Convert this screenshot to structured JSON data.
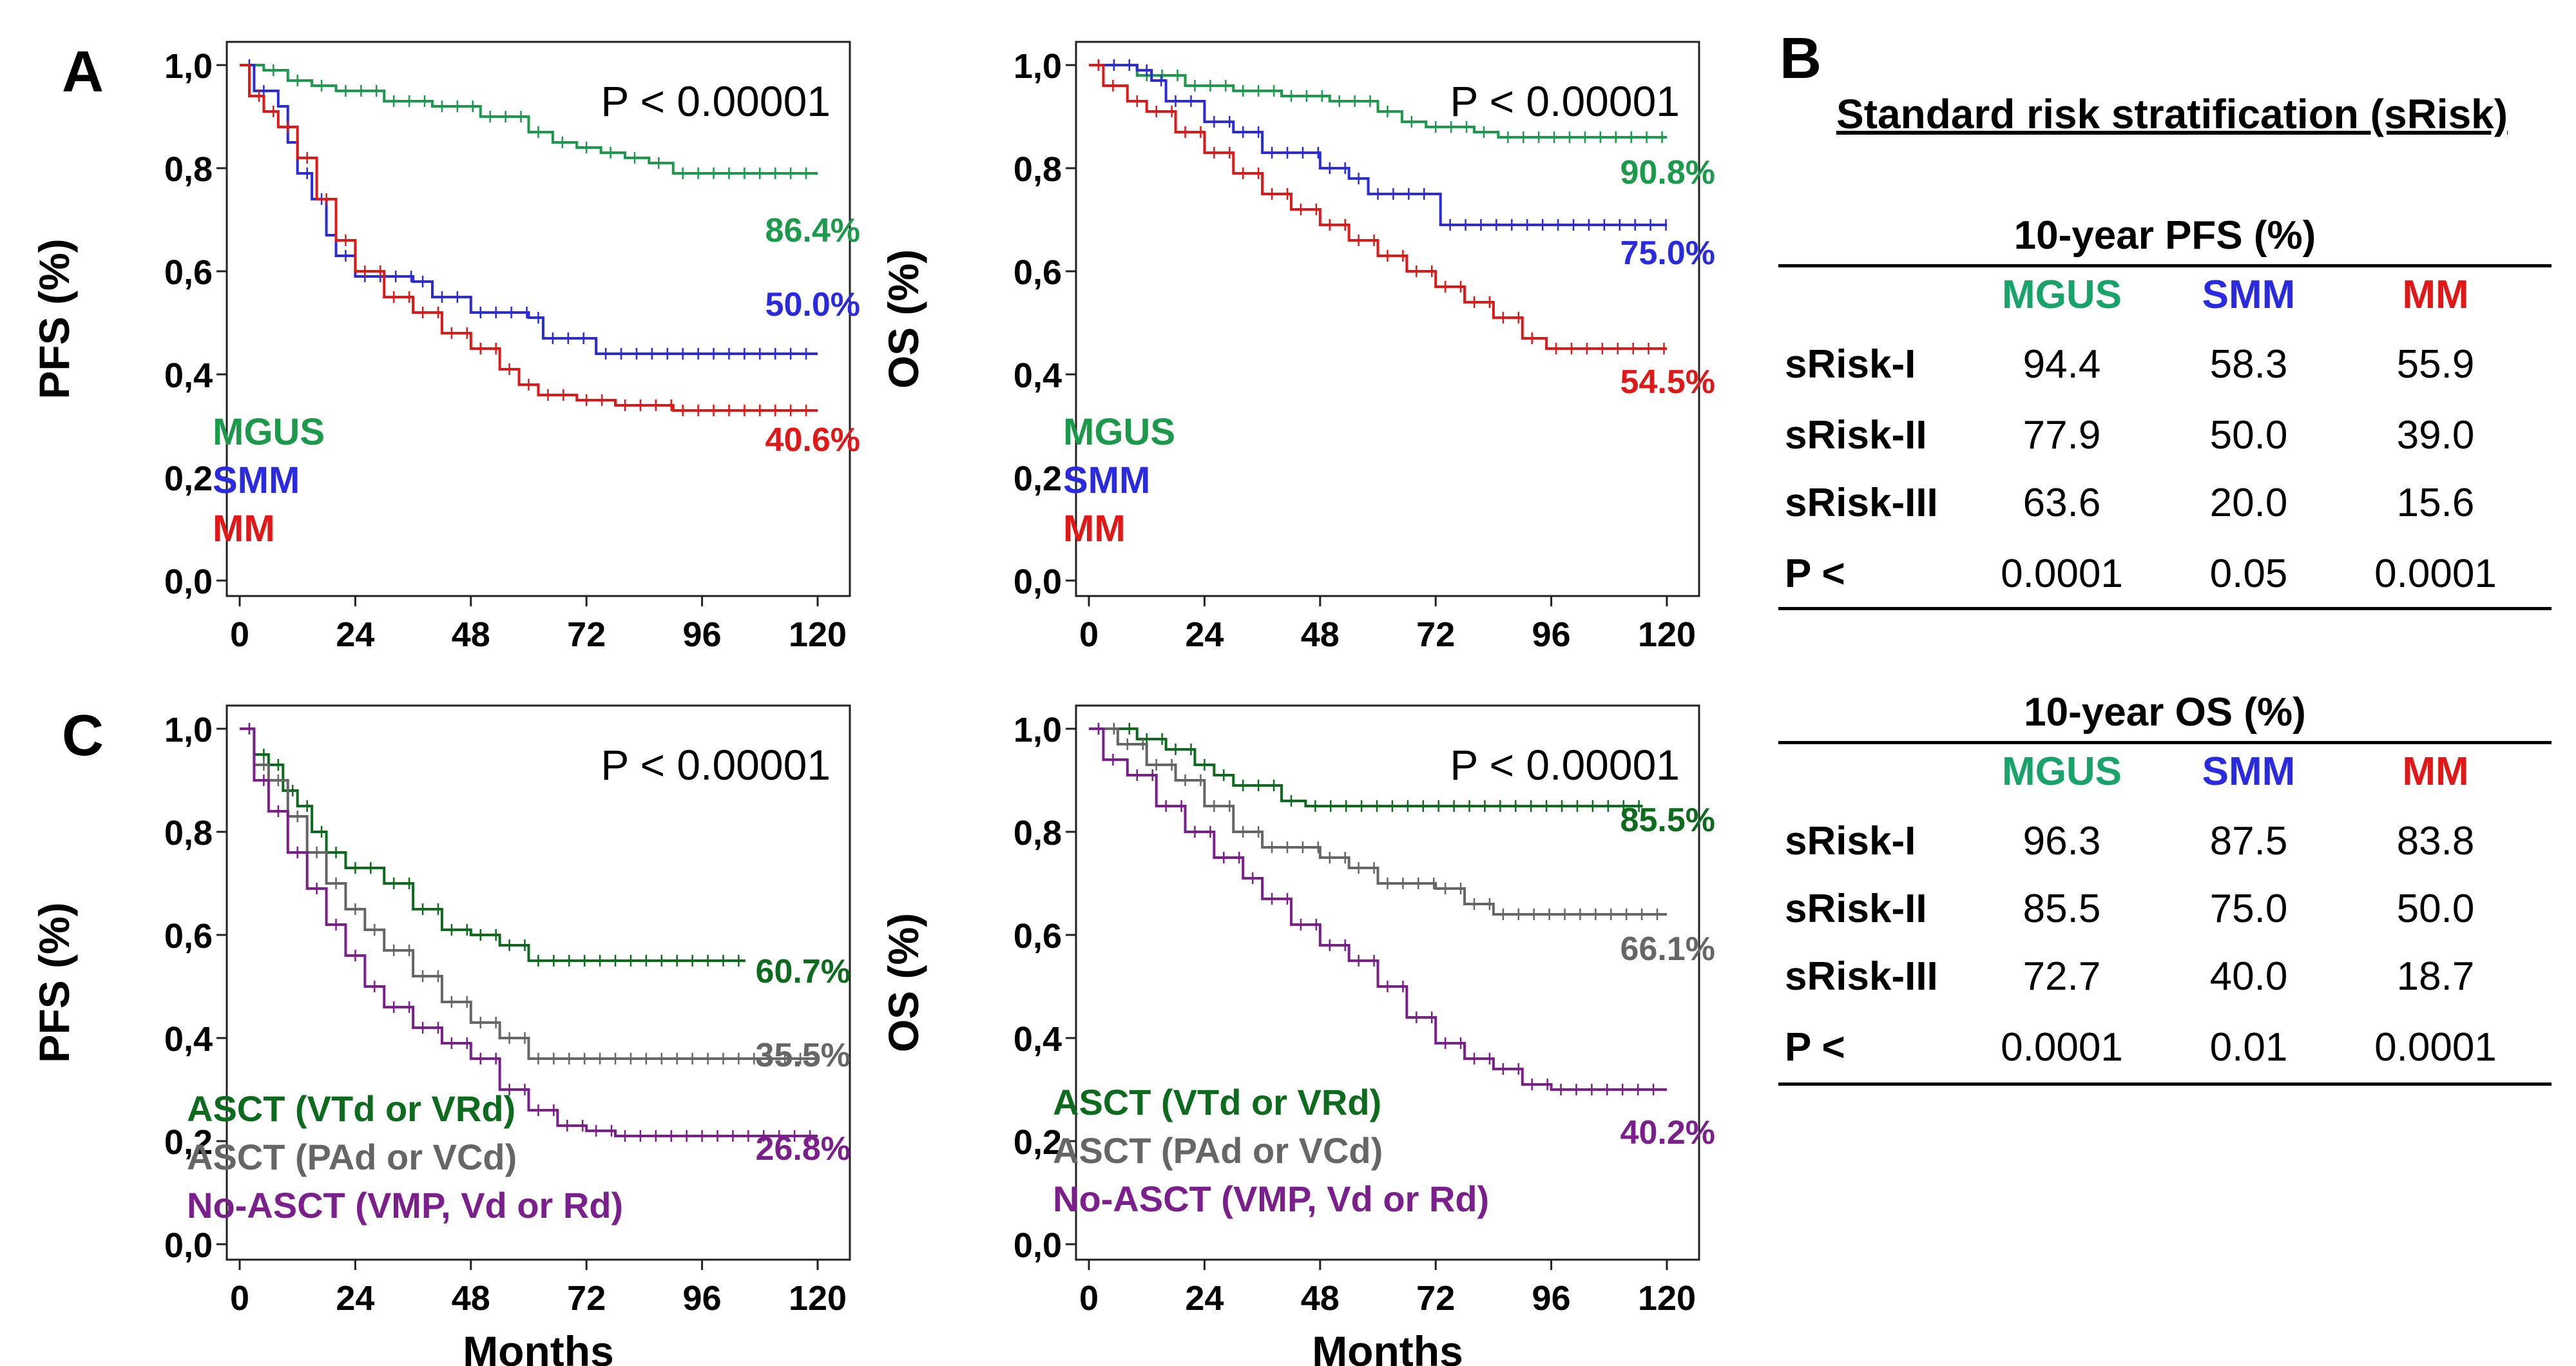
{
  "colors": {
    "mgus": "#1a9a4a",
    "smm": "#2a2ae0",
    "mm": "#e01818",
    "vtd": "#0d6b1e",
    "pad": "#666666",
    "vmp": "#7a1f8c",
    "mgus_header": "#17a36a"
  },
  "chart_data": [
    {
      "id": "A-PFS",
      "panel_letter": "A",
      "type": "line",
      "title": "",
      "xlabel": "",
      "ylabel": "PFS (%)",
      "xlim": [
        0,
        120
      ],
      "ylim": [
        0,
        1
      ],
      "xticks": [
        0,
        24,
        48,
        72,
        96,
        120
      ],
      "xtick_labels": [
        "0",
        "24",
        "48",
        "72",
        "96",
        "120"
      ],
      "ytick_labels": [
        "0,0",
        "0,2",
        "0,4",
        "0,6",
        "0,8",
        "1,0"
      ],
      "pvalue": "P < 0.00001",
      "legend": [
        "MGUS",
        "SMM",
        "MM"
      ],
      "series": [
        {
          "name": "MGUS",
          "color_key": "mgus",
          "annotation": "86.4%",
          "points": [
            [
              0,
              1.0
            ],
            [
              5,
              0.99
            ],
            [
              10,
              0.97
            ],
            [
              15,
              0.96
            ],
            [
              20,
              0.95
            ],
            [
              30,
              0.93
            ],
            [
              40,
              0.92
            ],
            [
              50,
              0.9
            ],
            [
              60,
              0.87
            ],
            [
              65,
              0.85
            ],
            [
              70,
              0.84
            ],
            [
              75,
              0.83
            ],
            [
              80,
              0.82
            ],
            [
              85,
              0.81
            ],
            [
              90,
              0.79
            ],
            [
              120,
              0.79
            ]
          ]
        },
        {
          "name": "SMM",
          "color_key": "smm",
          "annotation": "50.0%",
          "points": [
            [
              0,
              1.0
            ],
            [
              3,
              0.95
            ],
            [
              8,
              0.92
            ],
            [
              10,
              0.85
            ],
            [
              12,
              0.79
            ],
            [
              15,
              0.74
            ],
            [
              18,
              0.67
            ],
            [
              20,
              0.63
            ],
            [
              24,
              0.59
            ],
            [
              36,
              0.58
            ],
            [
              40,
              0.55
            ],
            [
              48,
              0.52
            ],
            [
              60,
              0.51
            ],
            [
              63,
              0.47
            ],
            [
              72,
              0.47
            ],
            [
              74,
              0.44
            ],
            [
              120,
              0.44
            ]
          ]
        },
        {
          "name": "MM",
          "color_key": "mm",
          "annotation": "40.6%",
          "points": [
            [
              0,
              1.0
            ],
            [
              2,
              0.94
            ],
            [
              5,
              0.91
            ],
            [
              8,
              0.88
            ],
            [
              12,
              0.82
            ],
            [
              16,
              0.74
            ],
            [
              20,
              0.66
            ],
            [
              24,
              0.6
            ],
            [
              30,
              0.55
            ],
            [
              36,
              0.52
            ],
            [
              42,
              0.48
            ],
            [
              48,
              0.45
            ],
            [
              54,
              0.41
            ],
            [
              58,
              0.38
            ],
            [
              62,
              0.36
            ],
            [
              70,
              0.35
            ],
            [
              78,
              0.34
            ],
            [
              90,
              0.33
            ],
            [
              120,
              0.33
            ]
          ]
        }
      ]
    },
    {
      "id": "A-OS",
      "panel_letter": "",
      "type": "line",
      "title": "",
      "xlabel": "",
      "ylabel": "OS (%)",
      "xlim": [
        0,
        120
      ],
      "ylim": [
        0,
        1
      ],
      "xticks": [
        0,
        24,
        48,
        72,
        96,
        120
      ],
      "xtick_labels": [
        "0",
        "24",
        "48",
        "72",
        "96",
        "120"
      ],
      "ytick_labels": [
        "0,0",
        "0,2",
        "0,4",
        "0,6",
        "0,8",
        "1,0"
      ],
      "pvalue": "P < 0.00001",
      "legend": [
        "MGUS",
        "SMM",
        "MM"
      ],
      "series": [
        {
          "name": "MGUS",
          "color_key": "mgus",
          "annotation": "90.8%",
          "points": [
            [
              0,
              1.0
            ],
            [
              10,
              0.98
            ],
            [
              20,
              0.96
            ],
            [
              30,
              0.95
            ],
            [
              40,
              0.94
            ],
            [
              50,
              0.93
            ],
            [
              60,
              0.91
            ],
            [
              65,
              0.89
            ],
            [
              70,
              0.88
            ],
            [
              80,
              0.87
            ],
            [
              85,
              0.86
            ],
            [
              120,
              0.86
            ]
          ]
        },
        {
          "name": "SMM",
          "color_key": "smm",
          "annotation": "75.0%",
          "points": [
            [
              0,
              1.0
            ],
            [
              10,
              0.99
            ],
            [
              13,
              0.97
            ],
            [
              16,
              0.93
            ],
            [
              22,
              0.93
            ],
            [
              24,
              0.89
            ],
            [
              30,
              0.87
            ],
            [
              36,
              0.83
            ],
            [
              48,
              0.8
            ],
            [
              54,
              0.78
            ],
            [
              58,
              0.75
            ],
            [
              72,
              0.75
            ],
            [
              73,
              0.69
            ],
            [
              120,
              0.69
            ]
          ]
        },
        {
          "name": "MM",
          "color_key": "mm",
          "annotation": "54.5%",
          "points": [
            [
              0,
              1.0
            ],
            [
              3,
              0.96
            ],
            [
              8,
              0.93
            ],
            [
              12,
              0.91
            ],
            [
              18,
              0.87
            ],
            [
              24,
              0.83
            ],
            [
              30,
              0.79
            ],
            [
              36,
              0.75
            ],
            [
              42,
              0.72
            ],
            [
              48,
              0.69
            ],
            [
              54,
              0.66
            ],
            [
              60,
              0.63
            ],
            [
              66,
              0.6
            ],
            [
              72,
              0.57
            ],
            [
              78,
              0.54
            ],
            [
              84,
              0.51
            ],
            [
              90,
              0.47
            ],
            [
              95,
              0.45
            ],
            [
              120,
              0.45
            ]
          ]
        }
      ]
    },
    {
      "id": "C-PFS",
      "panel_letter": "C",
      "type": "line",
      "title": "",
      "xlabel": "Months",
      "ylabel": "PFS (%)",
      "xlim": [
        0,
        120
      ],
      "ylim": [
        0,
        1
      ],
      "xticks": [
        0,
        24,
        48,
        72,
        96,
        120
      ],
      "xtick_labels": [
        "0",
        "24",
        "48",
        "72",
        "96",
        "120"
      ],
      "ytick_labels": [
        "0,0",
        "0,2",
        "0,4",
        "0,6",
        "0,8",
        "1,0"
      ],
      "pvalue": "P < 0.00001",
      "legend": [
        "ASCT (VTd or VRd)",
        "ASCT (PAd or VCd)",
        "No-ASCT (VMP, Vd or Rd)"
      ],
      "series": [
        {
          "name": "ASCT (VTd or VRd)",
          "color_key": "vtd",
          "annotation": "60.7%",
          "points": [
            [
              0,
              1.0
            ],
            [
              3,
              0.95
            ],
            [
              6,
              0.93
            ],
            [
              9,
              0.88
            ],
            [
              12,
              0.85
            ],
            [
              15,
              0.8
            ],
            [
              18,
              0.76
            ],
            [
              22,
              0.73
            ],
            [
              30,
              0.7
            ],
            [
              36,
              0.65
            ],
            [
              42,
              0.61
            ],
            [
              48,
              0.6
            ],
            [
              54,
              0.58
            ],
            [
              60,
              0.55
            ],
            [
              105,
              0.55
            ]
          ]
        },
        {
          "name": "ASCT (PAd or VCd)",
          "color_key": "pad",
          "annotation": "35.5%",
          "points": [
            [
              0,
              1.0
            ],
            [
              3,
              0.93
            ],
            [
              6,
              0.9
            ],
            [
              10,
              0.83
            ],
            [
              14,
              0.76
            ],
            [
              18,
              0.7
            ],
            [
              22,
              0.65
            ],
            [
              26,
              0.61
            ],
            [
              30,
              0.57
            ],
            [
              36,
              0.52
            ],
            [
              42,
              0.47
            ],
            [
              48,
              0.43
            ],
            [
              54,
              0.4
            ],
            [
              60,
              0.36
            ],
            [
              120,
              0.36
            ]
          ]
        },
        {
          "name": "No-ASCT (VMP, Vd or Rd)",
          "color_key": "vmp",
          "annotation": "26.8%",
          "points": [
            [
              0,
              1.0
            ],
            [
              3,
              0.9
            ],
            [
              6,
              0.84
            ],
            [
              10,
              0.76
            ],
            [
              14,
              0.69
            ],
            [
              18,
              0.62
            ],
            [
              22,
              0.56
            ],
            [
              26,
              0.5
            ],
            [
              30,
              0.46
            ],
            [
              36,
              0.42
            ],
            [
              42,
              0.39
            ],
            [
              48,
              0.36
            ],
            [
              54,
              0.3
            ],
            [
              60,
              0.26
            ],
            [
              66,
              0.23
            ],
            [
              72,
              0.22
            ],
            [
              78,
              0.21
            ],
            [
              120,
              0.21
            ]
          ]
        }
      ]
    },
    {
      "id": "C-OS",
      "panel_letter": "",
      "type": "line",
      "title": "",
      "xlabel": "Months",
      "ylabel": "OS (%)",
      "xlim": [
        0,
        120
      ],
      "ylim": [
        0,
        1
      ],
      "xticks": [
        0,
        24,
        48,
        72,
        96,
        120
      ],
      "xtick_labels": [
        "0",
        "24",
        "48",
        "72",
        "96",
        "120"
      ],
      "ytick_labels": [
        "0,0",
        "0,2",
        "0,4",
        "0,6",
        "0,8",
        "1,0"
      ],
      "pvalue": "P < 0.00001",
      "legend": [
        "ASCT (VTd or VRd)",
        "ASCT (PAd or VCd)",
        "No-ASCT (VMP, Vd or Rd)"
      ],
      "series": [
        {
          "name": "ASCT (VTd or VRd)",
          "color_key": "vtd",
          "annotation": "85.5%",
          "points": [
            [
              0,
              1.0
            ],
            [
              10,
              0.98
            ],
            [
              16,
              0.96
            ],
            [
              22,
              0.93
            ],
            [
              26,
              0.91
            ],
            [
              30,
              0.89
            ],
            [
              40,
              0.86
            ],
            [
              45,
              0.85
            ],
            [
              115,
              0.85
            ]
          ]
        },
        {
          "name": "ASCT (PAd or VCd)",
          "color_key": "pad",
          "annotation": "66.1%",
          "points": [
            [
              0,
              1.0
            ],
            [
              6,
              0.97
            ],
            [
              12,
              0.93
            ],
            [
              18,
              0.9
            ],
            [
              24,
              0.85
            ],
            [
              30,
              0.8
            ],
            [
              36,
              0.77
            ],
            [
              48,
              0.75
            ],
            [
              54,
              0.73
            ],
            [
              60,
              0.7
            ],
            [
              72,
              0.69
            ],
            [
              78,
              0.66
            ],
            [
              84,
              0.64
            ],
            [
              120,
              0.64
            ]
          ]
        },
        {
          "name": "No-ASCT (VMP, Vd or Rd)",
          "color_key": "vmp",
          "annotation": "40.2%",
          "points": [
            [
              0,
              1.0
            ],
            [
              3,
              0.94
            ],
            [
              8,
              0.91
            ],
            [
              14,
              0.85
            ],
            [
              20,
              0.8
            ],
            [
              26,
              0.75
            ],
            [
              32,
              0.71
            ],
            [
              36,
              0.67
            ],
            [
              42,
              0.62
            ],
            [
              48,
              0.58
            ],
            [
              54,
              0.55
            ],
            [
              60,
              0.5
            ],
            [
              66,
              0.44
            ],
            [
              72,
              0.39
            ],
            [
              78,
              0.36
            ],
            [
              84,
              0.34
            ],
            [
              90,
              0.31
            ],
            [
              96,
              0.3
            ],
            [
              120,
              0.3
            ]
          ]
        }
      ]
    }
  ],
  "tables": {
    "panel_letter": "B",
    "title": "Standard risk stratification (sRisk)",
    "headers": [
      "MGUS",
      "SMM",
      "MM"
    ],
    "pfs": {
      "caption": "10-year PFS (%)",
      "rows": [
        {
          "label": "sRisk-I",
          "values": [
            "94.4",
            "58.3",
            "55.9"
          ]
        },
        {
          "label": "sRisk-II",
          "values": [
            "77.9",
            "50.0",
            "39.0"
          ]
        },
        {
          "label": "sRisk-III",
          "values": [
            "63.6",
            "20.0",
            "15.6"
          ]
        },
        {
          "label": "P <",
          "values": [
            "0.0001",
            "0.05",
            "0.0001"
          ]
        }
      ]
    },
    "os": {
      "caption": "10-year OS (%)",
      "rows": [
        {
          "label": "sRisk-I",
          "values": [
            "96.3",
            "87.5",
            "83.8"
          ]
        },
        {
          "label": "sRisk-II",
          "values": [
            "85.5",
            "75.0",
            "50.0"
          ]
        },
        {
          "label": "sRisk-III",
          "values": [
            "72.7",
            "40.0",
            "18.7"
          ]
        },
        {
          "label": "P <",
          "values": [
            "0.0001",
            "0.01",
            "0.0001"
          ]
        }
      ]
    }
  }
}
